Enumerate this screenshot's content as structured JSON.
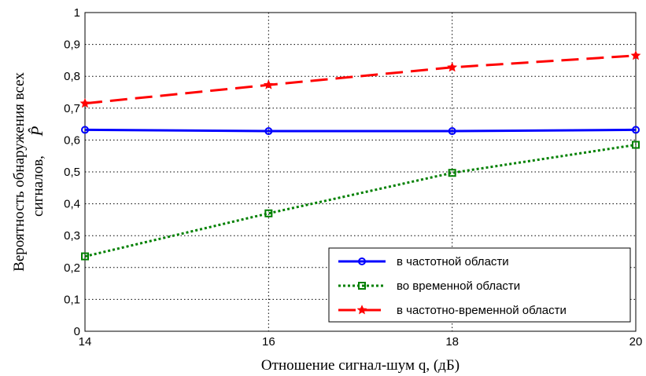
{
  "chart_data": {
    "type": "line",
    "xlabel": "Отношение сигнал-шум q, (дБ)",
    "ylabel_line1": "Вероятность обнаружения всех",
    "ylabel_line2": "сигналов,",
    "ylabel_symbol": "P̂",
    "xlim": [
      14,
      20
    ],
    "ylim": [
      0,
      1
    ],
    "x_ticks": [
      14,
      16,
      18,
      20
    ],
    "y_ticks": [
      "0",
      "0,1",
      "0,2",
      "0,3",
      "0,4",
      "0,5",
      "0,6",
      "0,7",
      "0,8",
      "0,9",
      "1"
    ],
    "grid": true,
    "legend_position": "bottom-right",
    "x": [
      14,
      16,
      18,
      20
    ],
    "series": [
      {
        "name": "в частотной области",
        "values": [
          0.632,
          0.628,
          0.628,
          0.632
        ],
        "color": "#0000ff",
        "marker": "circle",
        "dash": "solid"
      },
      {
        "name": "во временной области",
        "values": [
          0.235,
          0.37,
          0.497,
          0.585
        ],
        "color": "#008000",
        "marker": "square",
        "dash": "dotted"
      },
      {
        "name": "в частотно-временной области",
        "values": [
          0.715,
          0.773,
          0.828,
          0.865
        ],
        "color": "#ff0000",
        "marker": "star",
        "dash": "long-dash"
      }
    ]
  }
}
